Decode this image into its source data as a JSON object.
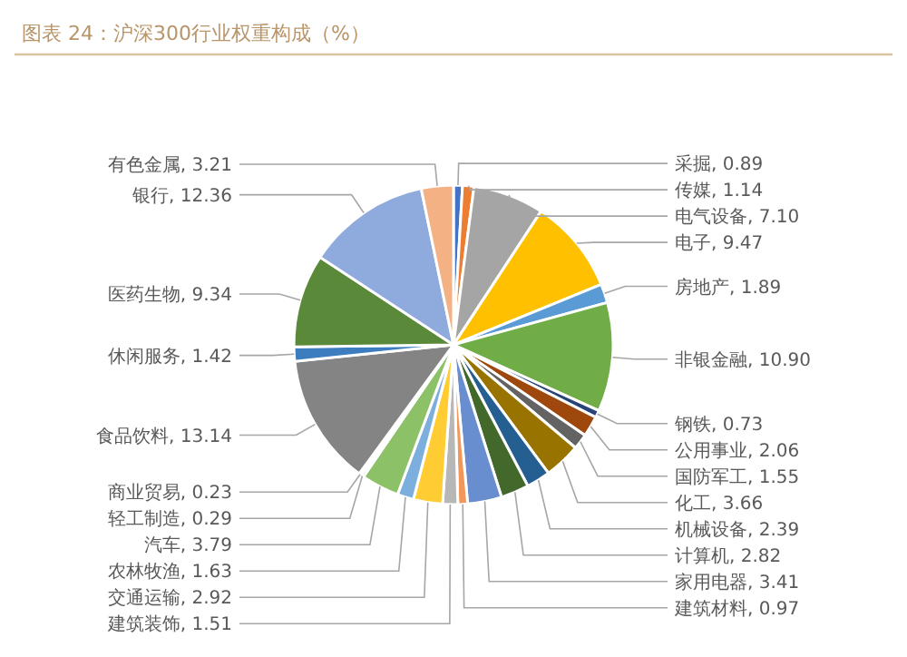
{
  "chart_data": {
    "type": "pie",
    "title": "图表 24：沪深300行业权重构成（%）",
    "categories": [
      "采掘",
      "传媒",
      "电气设备",
      "电子",
      "房地产",
      "非银金融",
      "钢铁",
      "公用事业",
      "国防军工",
      "化工",
      "机械设备",
      "计算机",
      "家用电器",
      "建筑材料",
      "建筑装饰",
      "交通运输",
      "农林牧渔",
      "汽车",
      "轻工制造",
      "商业贸易",
      "食品饮料",
      "休闲服务",
      "医药生物",
      "银行",
      "有色金属"
    ],
    "values": [
      0.89,
      1.14,
      7.1,
      9.47,
      1.89,
      10.9,
      0.73,
      2.06,
      1.55,
      3.66,
      2.39,
      2.82,
      3.41,
      0.97,
      1.51,
      2.92,
      1.63,
      3.79,
      0.29,
      0.23,
      13.14,
      1.42,
      9.34,
      12.36,
      3.21
    ],
    "colors": [
      "#4472c4",
      "#ed7d31",
      "#a5a5a5",
      "#ffc000",
      "#5b9bd5",
      "#70ad47",
      "#264478",
      "#9e480e",
      "#636363",
      "#997300",
      "#255e91",
      "#43682b",
      "#698ed0",
      "#f1975a",
      "#b7b7b7",
      "#ffcd33",
      "#7cafdd",
      "#8cc168",
      "#335aa1",
      "#d26012",
      "#848484",
      "#3c7dc0",
      "#5a8a39",
      "#8faadc",
      "#f4b183"
    ],
    "value_labels": [
      ", 0.89",
      ", 1.14",
      ", 7.10",
      ", 9.47",
      ", 1.89",
      ", 10.90",
      ", 0.73",
      ", 2.06",
      ", 1.55",
      ", 3.66",
      ", 2.39",
      ", 2.82",
      ", 3.41",
      ", 0.97",
      ", 1.51",
      ", 2.92",
      ", 1.63",
      ", 3.79",
      ", 0.29",
      ", 0.23",
      ", 13.14",
      ", 1.42",
      ", 9.34",
      ", 12.36",
      ", 3.21"
    ]
  }
}
